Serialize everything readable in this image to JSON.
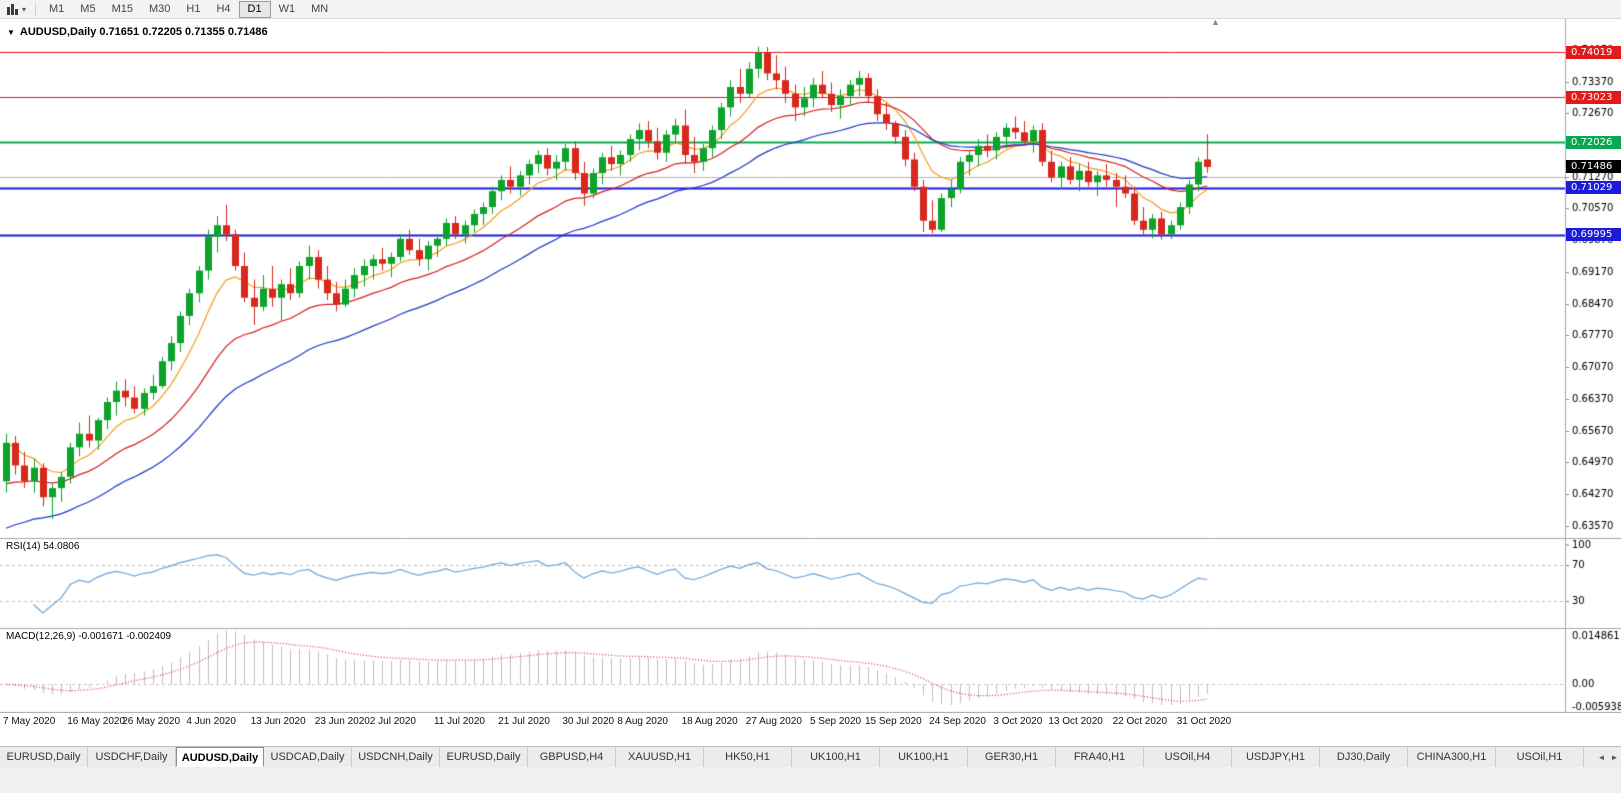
{
  "toolbar": {
    "timeframes": [
      "M1",
      "M5",
      "M15",
      "M30",
      "H1",
      "H4",
      "D1",
      "W1",
      "MN"
    ],
    "active_timeframe": "D1"
  },
  "chart": {
    "symbol": "AUDUSD",
    "period": "Daily",
    "title": "AUDUSD,Daily 0.71651 0.72205 0.71355 0.71486",
    "open": "0.71651",
    "high": "0.72205",
    "low": "0.71355",
    "close": "0.71486"
  },
  "shift_marker": "▲",
  "price_axis": {
    "scale_top": 0.7475,
    "scale_bottom": 0.633,
    "ticks": [
      "0.74070",
      "0.73370",
      "0.72670",
      "0.71970",
      "0.71270",
      "0.70570",
      "0.69870",
      "0.69170",
      "0.68470",
      "0.67770",
      "0.67070",
      "0.66370",
      "0.65670",
      "0.64970",
      "0.64270",
      "0.63570"
    ],
    "badges": [
      {
        "text": "0.74019",
        "price": 0.74019,
        "color": "#e11b1b",
        "name": "resistance-level-1"
      },
      {
        "text": "0.73023",
        "price": 0.73023,
        "color": "#e11b1b",
        "name": "resistance-level-2"
      },
      {
        "text": "0.72026",
        "price": 0.72026,
        "color": "#08a94e",
        "name": "pivot-level"
      },
      {
        "text": "0.71486",
        "price": 0.71486,
        "color": "#000000",
        "name": "current-price"
      },
      {
        "text": "0.71029",
        "price": 0.71029,
        "color": "#1c1cd8",
        "name": "support-level-1"
      },
      {
        "text": "0.69995",
        "price": 0.69995,
        "color": "#1c1cd8",
        "name": "support-level-2"
      }
    ]
  },
  "chart_data": {
    "type": "candlestick",
    "symbol": "AUDUSD",
    "timeframe": "Daily",
    "up_color": "#0ba32a",
    "down_color": "#d7281d",
    "levels": [
      {
        "price": 0.74019,
        "color": "#e11b1b",
        "width": 1
      },
      {
        "price": 0.73023,
        "color": "#e11b1b",
        "width": 1
      },
      {
        "price": 0.72026,
        "color": "#08a94e",
        "width": 2
      },
      {
        "price": 0.7127,
        "color": "#b8b8b8",
        "width": 1
      },
      {
        "price": 0.71029,
        "color": "#1c1cd8",
        "width": 2
      },
      {
        "price": 0.69995,
        "color": "#1c1cd8",
        "width": 2
      }
    ],
    "moving_averages": [
      {
        "name": "fast-ma",
        "period": 8,
        "color": "#f0a020",
        "seed": null
      },
      {
        "name": "medium-ma",
        "period": 20,
        "color": "#d62020",
        "seed": 0.644
      },
      {
        "name": "slow-ma",
        "period": 34,
        "color": "#2038c8",
        "seed": 0.634
      }
    ],
    "date_labels": [
      {
        "text": "7 May 2020",
        "candle": 0
      },
      {
        "text": "16 May 2020",
        "candle": 7
      },
      {
        "text": "26 May 2020",
        "candle": 13
      },
      {
        "text": "4 Jun 2020",
        "candle": 20
      },
      {
        "text": "13 Jun 2020",
        "candle": 27
      },
      {
        "text": "23 Jun 2020",
        "candle": 34
      },
      {
        "text": "2 Jul 2020",
        "candle": 40
      },
      {
        "text": "11 Jul 2020",
        "candle": 47
      },
      {
        "text": "21 Jul 2020",
        "candle": 54
      },
      {
        "text": "30 Jul 2020",
        "candle": 61
      },
      {
        "text": "8 Aug 2020",
        "candle": 67
      },
      {
        "text": "18 Aug 2020",
        "candle": 74
      },
      {
        "text": "27 Aug 2020",
        "candle": 81
      },
      {
        "text": "5 Sep 2020",
        "candle": 88
      },
      {
        "text": "15 Sep 2020",
        "candle": 94
      },
      {
        "text": "24 Sep 2020",
        "candle": 101
      },
      {
        "text": "3 Oct 2020",
        "candle": 108
      },
      {
        "text": "13 Oct 2020",
        "candle": 114
      },
      {
        "text": "22 Oct 2020",
        "candle": 121
      },
      {
        "text": "31 Oct 2020",
        "candle": 128
      }
    ],
    "candles": [
      [
        0.6455,
        0.656,
        0.643,
        0.654
      ],
      [
        0.654,
        0.6555,
        0.647,
        0.649
      ],
      [
        0.649,
        0.652,
        0.644,
        0.6455
      ],
      [
        0.6455,
        0.6505,
        0.643,
        0.6485
      ],
      [
        0.6485,
        0.6495,
        0.64,
        0.642
      ],
      [
        0.642,
        0.645,
        0.6372,
        0.644
      ],
      [
        0.644,
        0.6475,
        0.641,
        0.6465
      ],
      [
        0.6465,
        0.654,
        0.645,
        0.653
      ],
      [
        0.653,
        0.6585,
        0.651,
        0.656
      ],
      [
        0.656,
        0.66,
        0.653,
        0.6545
      ],
      [
        0.6545,
        0.6595,
        0.6525,
        0.659
      ],
      [
        0.659,
        0.664,
        0.657,
        0.663
      ],
      [
        0.663,
        0.6675,
        0.66,
        0.6655
      ],
      [
        0.6655,
        0.668,
        0.662,
        0.664
      ],
      [
        0.664,
        0.6665,
        0.6605,
        0.6615
      ],
      [
        0.6615,
        0.666,
        0.66,
        0.665
      ],
      [
        0.665,
        0.669,
        0.6635,
        0.6665
      ],
      [
        0.6665,
        0.673,
        0.666,
        0.672
      ],
      [
        0.672,
        0.6775,
        0.67,
        0.676
      ],
      [
        0.676,
        0.683,
        0.674,
        0.682
      ],
      [
        0.682,
        0.688,
        0.68,
        0.687
      ],
      [
        0.687,
        0.693,
        0.685,
        0.692
      ],
      [
        0.692,
        0.701,
        0.69,
        0.6995
      ],
      [
        0.6995,
        0.704,
        0.696,
        0.702
      ],
      [
        0.702,
        0.7065,
        0.6985,
        0.7
      ],
      [
        0.7,
        0.701,
        0.692,
        0.693
      ],
      [
        0.693,
        0.696,
        0.685,
        0.686
      ],
      [
        0.686,
        0.69,
        0.68,
        0.684
      ],
      [
        0.684,
        0.691,
        0.683,
        0.688
      ],
      [
        0.688,
        0.693,
        0.684,
        0.686
      ],
      [
        0.686,
        0.69,
        0.681,
        0.689
      ],
      [
        0.689,
        0.6925,
        0.6855,
        0.687
      ],
      [
        0.687,
        0.694,
        0.686,
        0.693
      ],
      [
        0.693,
        0.6975,
        0.69,
        0.695
      ],
      [
        0.695,
        0.6965,
        0.688,
        0.69
      ],
      [
        0.69,
        0.693,
        0.6855,
        0.687
      ],
      [
        0.687,
        0.6895,
        0.683,
        0.6845
      ],
      [
        0.6845,
        0.69,
        0.684,
        0.688
      ],
      [
        0.688,
        0.6925,
        0.686,
        0.691
      ],
      [
        0.691,
        0.6945,
        0.6885,
        0.693
      ],
      [
        0.693,
        0.6955,
        0.69,
        0.6945
      ],
      [
        0.6945,
        0.697,
        0.692,
        0.6935
      ],
      [
        0.6935,
        0.696,
        0.6905,
        0.695
      ],
      [
        0.695,
        0.7,
        0.694,
        0.699
      ],
      [
        0.699,
        0.701,
        0.6955,
        0.6965
      ],
      [
        0.6965,
        0.699,
        0.693,
        0.6945
      ],
      [
        0.6945,
        0.6985,
        0.692,
        0.6975
      ],
      [
        0.6975,
        0.7,
        0.695,
        0.699
      ],
      [
        0.699,
        0.7035,
        0.6975,
        0.7025
      ],
      [
        0.7025,
        0.704,
        0.699,
        0.7
      ],
      [
        0.7,
        0.703,
        0.698,
        0.702
      ],
      [
        0.702,
        0.7055,
        0.7005,
        0.7045
      ],
      [
        0.7045,
        0.707,
        0.702,
        0.706
      ],
      [
        0.706,
        0.7105,
        0.7045,
        0.7095
      ],
      [
        0.7095,
        0.713,
        0.7075,
        0.712
      ],
      [
        0.712,
        0.715,
        0.709,
        0.7105
      ],
      [
        0.7105,
        0.714,
        0.7085,
        0.713
      ],
      [
        0.713,
        0.7165,
        0.711,
        0.7155
      ],
      [
        0.7155,
        0.7185,
        0.7135,
        0.7175
      ],
      [
        0.7175,
        0.719,
        0.713,
        0.7145
      ],
      [
        0.7145,
        0.7175,
        0.712,
        0.716
      ],
      [
        0.716,
        0.72,
        0.714,
        0.719
      ],
      [
        0.719,
        0.7205,
        0.712,
        0.7135
      ],
      [
        0.7135,
        0.716,
        0.7063,
        0.709
      ],
      [
        0.709,
        0.7145,
        0.708,
        0.7135
      ],
      [
        0.7135,
        0.718,
        0.711,
        0.717
      ],
      [
        0.717,
        0.7195,
        0.714,
        0.7155
      ],
      [
        0.7155,
        0.7185,
        0.713,
        0.7175
      ],
      [
        0.7175,
        0.722,
        0.716,
        0.721
      ],
      [
        0.721,
        0.7245,
        0.7185,
        0.723
      ],
      [
        0.723,
        0.725,
        0.719,
        0.7205
      ],
      [
        0.7205,
        0.7235,
        0.7165,
        0.718
      ],
      [
        0.718,
        0.723,
        0.716,
        0.722
      ],
      [
        0.722,
        0.7255,
        0.72,
        0.724
      ],
      [
        0.724,
        0.7275,
        0.7155,
        0.7175
      ],
      [
        0.7175,
        0.7215,
        0.7135,
        0.716
      ],
      [
        0.716,
        0.72,
        0.714,
        0.719
      ],
      [
        0.719,
        0.724,
        0.717,
        0.723
      ],
      [
        0.723,
        0.729,
        0.721,
        0.728
      ],
      [
        0.728,
        0.734,
        0.726,
        0.7325
      ],
      [
        0.7325,
        0.7365,
        0.729,
        0.731
      ],
      [
        0.731,
        0.738,
        0.73,
        0.7365
      ],
      [
        0.7365,
        0.7414,
        0.7345,
        0.74
      ],
      [
        0.74,
        0.7413,
        0.734,
        0.7355
      ],
      [
        0.7355,
        0.7395,
        0.732,
        0.734
      ],
      [
        0.734,
        0.737,
        0.729,
        0.731
      ],
      [
        0.731,
        0.733,
        0.725,
        0.728
      ],
      [
        0.728,
        0.7325,
        0.726,
        0.73
      ],
      [
        0.73,
        0.7345,
        0.728,
        0.733
      ],
      [
        0.733,
        0.736,
        0.73,
        0.731
      ],
      [
        0.731,
        0.7335,
        0.727,
        0.7285
      ],
      [
        0.7285,
        0.732,
        0.7255,
        0.7305
      ],
      [
        0.7305,
        0.734,
        0.7285,
        0.733
      ],
      [
        0.733,
        0.736,
        0.7305,
        0.7345
      ],
      [
        0.7345,
        0.7355,
        0.729,
        0.7305
      ],
      [
        0.7305,
        0.732,
        0.725,
        0.7265
      ],
      [
        0.7265,
        0.729,
        0.723,
        0.7245
      ],
      [
        0.7245,
        0.725,
        0.72,
        0.7215
      ],
      [
        0.7215,
        0.723,
        0.715,
        0.7165
      ],
      [
        0.7165,
        0.718,
        0.7095,
        0.7105
      ],
      [
        0.7105,
        0.712,
        0.7005,
        0.703
      ],
      [
        0.703,
        0.7075,
        0.7002,
        0.701
      ],
      [
        0.701,
        0.709,
        0.7005,
        0.708
      ],
      [
        0.708,
        0.712,
        0.706,
        0.71
      ],
      [
        0.71,
        0.717,
        0.709,
        0.716
      ],
      [
        0.716,
        0.7185,
        0.713,
        0.7175
      ],
      [
        0.7175,
        0.721,
        0.715,
        0.7195
      ],
      [
        0.7195,
        0.722,
        0.717,
        0.7185
      ],
      [
        0.7185,
        0.7225,
        0.7165,
        0.7215
      ],
      [
        0.7215,
        0.7245,
        0.719,
        0.7235
      ],
      [
        0.7235,
        0.726,
        0.721,
        0.7225
      ],
      [
        0.7225,
        0.725,
        0.7195,
        0.7205
      ],
      [
        0.7205,
        0.724,
        0.718,
        0.723
      ],
      [
        0.723,
        0.7245,
        0.715,
        0.716
      ],
      [
        0.716,
        0.7185,
        0.7115,
        0.7125
      ],
      [
        0.7125,
        0.716,
        0.71,
        0.715
      ],
      [
        0.715,
        0.717,
        0.711,
        0.712
      ],
      [
        0.712,
        0.7155,
        0.7095,
        0.714
      ],
      [
        0.714,
        0.716,
        0.7105,
        0.7115
      ],
      [
        0.7115,
        0.714,
        0.7085,
        0.713
      ],
      [
        0.713,
        0.7155,
        0.7105,
        0.712
      ],
      [
        0.712,
        0.7135,
        0.706,
        0.7105
      ],
      [
        0.7105,
        0.713,
        0.708,
        0.709
      ],
      [
        0.709,
        0.7105,
        0.702,
        0.703
      ],
      [
        0.703,
        0.706,
        0.7,
        0.701
      ],
      [
        0.701,
        0.7045,
        0.6991,
        0.7035
      ],
      [
        0.7035,
        0.705,
        0.6988,
        0.7
      ],
      [
        0.7,
        0.703,
        0.699,
        0.702
      ],
      [
        0.702,
        0.707,
        0.701,
        0.706
      ],
      [
        0.706,
        0.712,
        0.7045,
        0.711
      ],
      [
        0.711,
        0.717,
        0.7095,
        0.716
      ],
      [
        0.71651,
        0.72205,
        0.71355,
        0.71486
      ]
    ]
  },
  "rsi_panel": {
    "label": "RSI(14) 54.0806",
    "period": 14,
    "value": "54.0806",
    "line_color": "#6ba7dd",
    "ticks": [
      "100",
      "70",
      "30"
    ],
    "level_lines": [
      70,
      30
    ]
  },
  "macd_panel": {
    "label": "MACD(12,26,9) -0.001671 -0.002409",
    "params": "12,26,9",
    "main_value": "-0.001671",
    "signal_value": "-0.002409",
    "histogram_color": "#c0c0c0",
    "signal_color": "#e03030",
    "ticks_top": "0.014861",
    "ticks_zero": "0.00",
    "ticks_bottom": "-0.005938"
  },
  "tabbar": {
    "active_index": 2,
    "scroll_left_icon": "◄",
    "scroll_right_icon": "►",
    "tabs": [
      "EURUSD,Daily",
      "USDCHF,Daily",
      "AUDUSD,Daily",
      "USDCAD,Daily",
      "USDCNH,Daily",
      "EURUSD,Daily",
      "GBPUSD,H4",
      "XAUUSD,H1",
      "HK50,H1",
      "UK100,H1",
      "UK100,H1",
      "GER30,H1",
      "FRA40,H1",
      "USOil,H4",
      "USDJPY,H1",
      "DJ30,Daily",
      "CHINA300,H1",
      "USOil,H1"
    ]
  }
}
